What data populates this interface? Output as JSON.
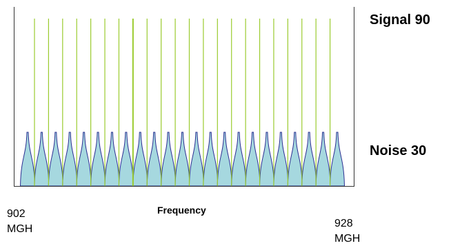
{
  "labels": {
    "signal": "Signal 90",
    "noise": "Noise 30",
    "xlabel": "Frequency",
    "x_start": "902",
    "x_start_unit": "MGH",
    "x_end": "928",
    "x_end_unit": "MGH"
  },
  "chart_data": {
    "type": "line",
    "channel_count": 23,
    "signal_level": 90,
    "noise_level": 30,
    "x_range": [
      902,
      928
    ],
    "colors": {
      "signal_line": "#9acb2e",
      "noise_outline": "#2b2f92",
      "noise_fill": "#a6d8df",
      "frame": "#333333"
    }
  }
}
